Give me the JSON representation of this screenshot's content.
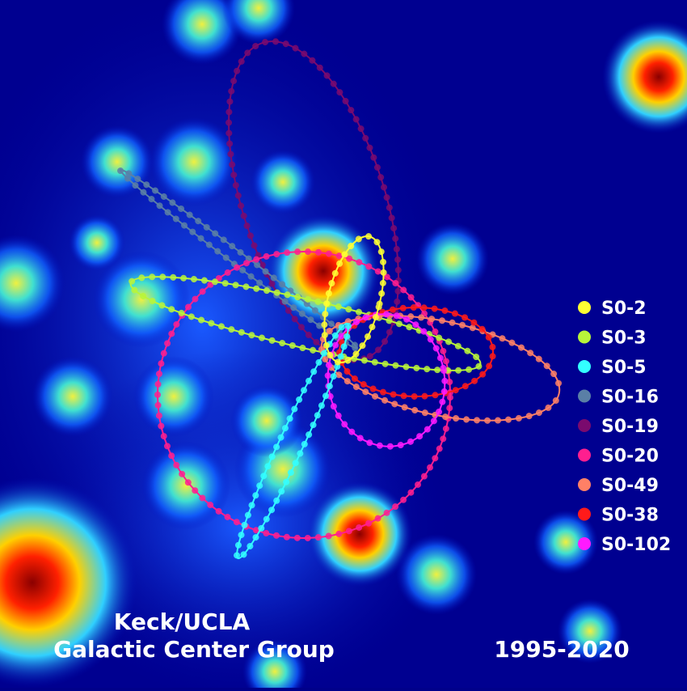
{
  "legend": [
    {
      "name": "S0-2",
      "color": "#ffff33"
    },
    {
      "name": "S0-3",
      "color": "#b8f53a"
    },
    {
      "name": "S0-5",
      "color": "#33ffff"
    },
    {
      "name": "S0-16",
      "color": "#5a7fa6"
    },
    {
      "name": "S0-19",
      "color": "#7a0a6e"
    },
    {
      "name": "S0-20",
      "color": "#ff1f8f"
    },
    {
      "name": "S0-49",
      "color": "#ff8066"
    },
    {
      "name": "S0-38",
      "color": "#ff1a1a"
    },
    {
      "name": "S0-102",
      "color": "#ff1aff"
    }
  ],
  "caption": {
    "line1": "Keck/UCLA",
    "line2": "Galactic Center Group"
  },
  "years": "1995-2020"
}
